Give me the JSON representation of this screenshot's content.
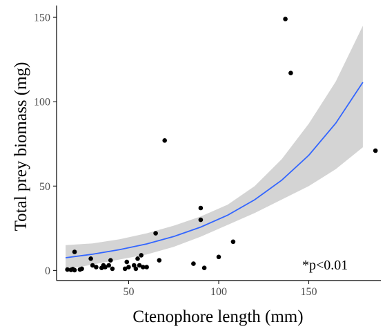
{
  "chart_data": {
    "type": "scatter",
    "title": "",
    "xlabel": "Ctenophore length (mm)",
    "ylabel": "Total prey biomass (mg)",
    "xlim": [
      10,
      190
    ],
    "ylim": [
      -6,
      157
    ],
    "x_ticks": [
      50,
      100,
      150
    ],
    "y_ticks": [
      0,
      50,
      100,
      150
    ],
    "annotation": "*p<0.01",
    "grid": false,
    "legend": "none",
    "colors": {
      "points": "#000000",
      "fit_line": "#3366FF",
      "confidence_band": "#d4d4d4",
      "axis": "#000000",
      "tick_label": "#4d4d4d"
    },
    "points": [
      {
        "x": 16,
        "y": 0.5
      },
      {
        "x": 18,
        "y": 0.3
      },
      {
        "x": 19,
        "y": 0.8
      },
      {
        "x": 20,
        "y": 0.2
      },
      {
        "x": 20,
        "y": 11
      },
      {
        "x": 23,
        "y": 0.5
      },
      {
        "x": 24,
        "y": 1
      },
      {
        "x": 29,
        "y": 7
      },
      {
        "x": 30,
        "y": 3
      },
      {
        "x": 32,
        "y": 2
      },
      {
        "x": 35,
        "y": 1.5
      },
      {
        "x": 36,
        "y": 3
      },
      {
        "x": 37,
        "y": 2
      },
      {
        "x": 39,
        "y": 3
      },
      {
        "x": 40,
        "y": 6
      },
      {
        "x": 41,
        "y": 1
      },
      {
        "x": 48,
        "y": 1
      },
      {
        "x": 49,
        "y": 5
      },
      {
        "x": 50,
        "y": 2
      },
      {
        "x": 53,
        "y": 3
      },
      {
        "x": 54,
        "y": 1
      },
      {
        "x": 55,
        "y": 7
      },
      {
        "x": 56,
        "y": 3
      },
      {
        "x": 57,
        "y": 9
      },
      {
        "x": 58,
        "y": 2
      },
      {
        "x": 60,
        "y": 2
      },
      {
        "x": 65,
        "y": 22
      },
      {
        "x": 67,
        "y": 6
      },
      {
        "x": 70,
        "y": 77
      },
      {
        "x": 86,
        "y": 4
      },
      {
        "x": 90,
        "y": 37
      },
      {
        "x": 90,
        "y": 30
      },
      {
        "x": 92,
        "y": 1.5
      },
      {
        "x": 100,
        "y": 8
      },
      {
        "x": 108,
        "y": 17
      },
      {
        "x": 137,
        "y": 149
      },
      {
        "x": 140,
        "y": 117
      },
      {
        "x": 187,
        "y": 71
      }
    ],
    "fit": {
      "x": [
        15,
        30,
        45,
        60,
        75,
        90,
        105,
        120,
        135,
        150,
        165,
        180
      ],
      "y": [
        7.5,
        9.6,
        12.3,
        15.7,
        20.1,
        25.7,
        32.8,
        41.9,
        53.5,
        68.3,
        87.3,
        111.5
      ],
      "lower": [
        0.5,
        3.5,
        6.5,
        9.5,
        14,
        20,
        27,
        34,
        42,
        50,
        60,
        73
      ],
      "upper": [
        15,
        16,
        18.5,
        22,
        26.5,
        32,
        39,
        50,
        66,
        87,
        112,
        145
      ]
    }
  }
}
